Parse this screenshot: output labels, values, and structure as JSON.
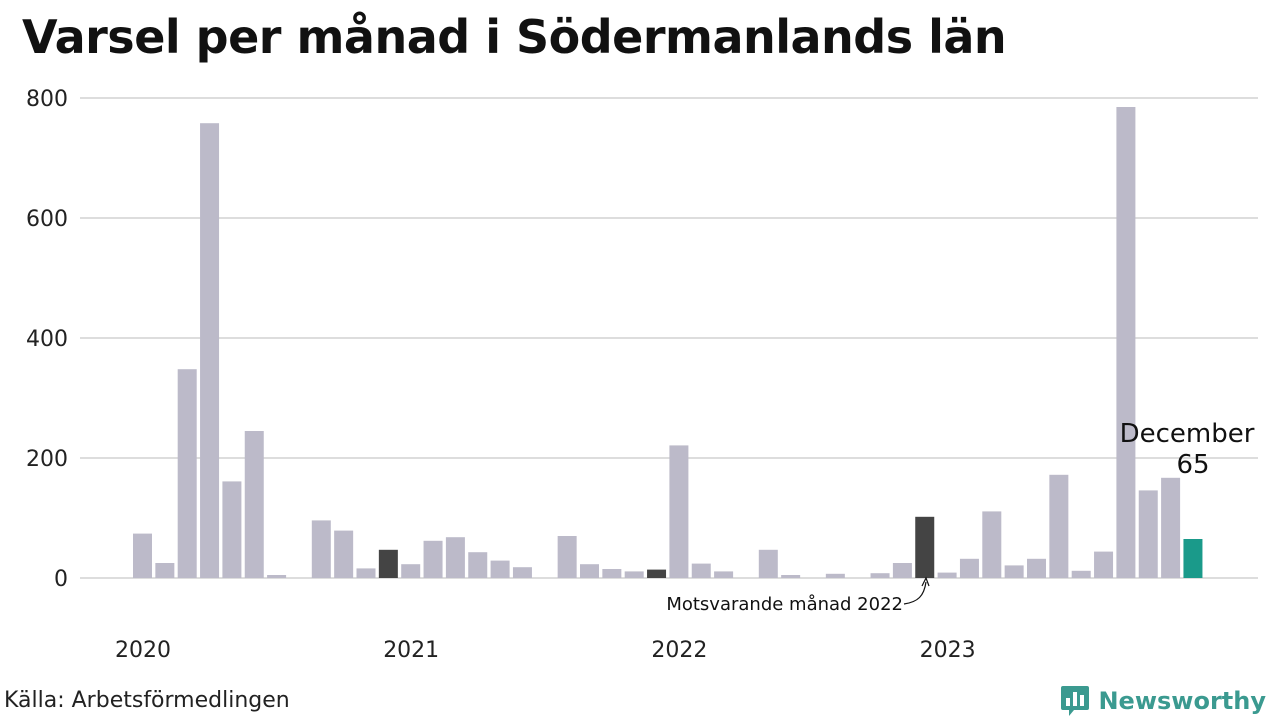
{
  "title": "Varsel per månad i Södermanlands län",
  "source": "Källa: Arbetsförmedlingen",
  "brand": {
    "name": "Newsworthy",
    "icon": "newsworthy-logo-icon"
  },
  "colors": {
    "bar": "#bcbac9",
    "highlight": "#444444",
    "current": "#1a9a8a",
    "grid": "#dddddd",
    "brand": "#3b9a90"
  },
  "chart_data": {
    "type": "bar",
    "ylim": [
      0,
      800
    ],
    "yticks": [
      0,
      200,
      400,
      600,
      800
    ],
    "grid": true,
    "year_labels": [
      "2020",
      "2021",
      "2022",
      "2023"
    ],
    "categories": [
      "2020-01",
      "2020-02",
      "2020-03",
      "2020-04",
      "2020-05",
      "2020-06",
      "2020-07",
      "2020-08",
      "2020-09",
      "2020-10",
      "2020-11",
      "2020-12",
      "2021-01",
      "2021-02",
      "2021-03",
      "2021-04",
      "2021-05",
      "2021-06",
      "2021-07",
      "2021-08",
      "2021-09",
      "2021-10",
      "2021-11",
      "2021-12",
      "2022-01",
      "2022-02",
      "2022-03",
      "2022-04",
      "2022-05",
      "2022-06",
      "2022-07",
      "2022-08",
      "2022-09",
      "2022-10",
      "2022-11",
      "2022-12",
      "2023-01",
      "2023-02",
      "2023-03",
      "2023-04",
      "2023-05",
      "2023-06",
      "2023-07",
      "2023-08",
      "2023-09",
      "2023-10",
      "2023-11",
      "2023-12"
    ],
    "values": [
      74,
      25,
      348,
      758,
      161,
      245,
      5,
      0,
      96,
      79,
      16,
      47,
      23,
      62,
      68,
      43,
      29,
      18,
      0,
      70,
      23,
      15,
      11,
      14,
      221,
      24,
      11,
      0,
      47,
      5,
      0,
      7,
      0,
      8,
      25,
      102,
      9,
      32,
      111,
      21,
      32,
      172,
      12,
      44,
      785,
      146,
      167,
      65
    ],
    "highlight_indices": [
      11,
      23,
      35
    ],
    "current_index": 47,
    "annotations": {
      "current_month": "December",
      "current_value": "65",
      "same_month_last_year": "Motsvarande månad 2022"
    }
  }
}
